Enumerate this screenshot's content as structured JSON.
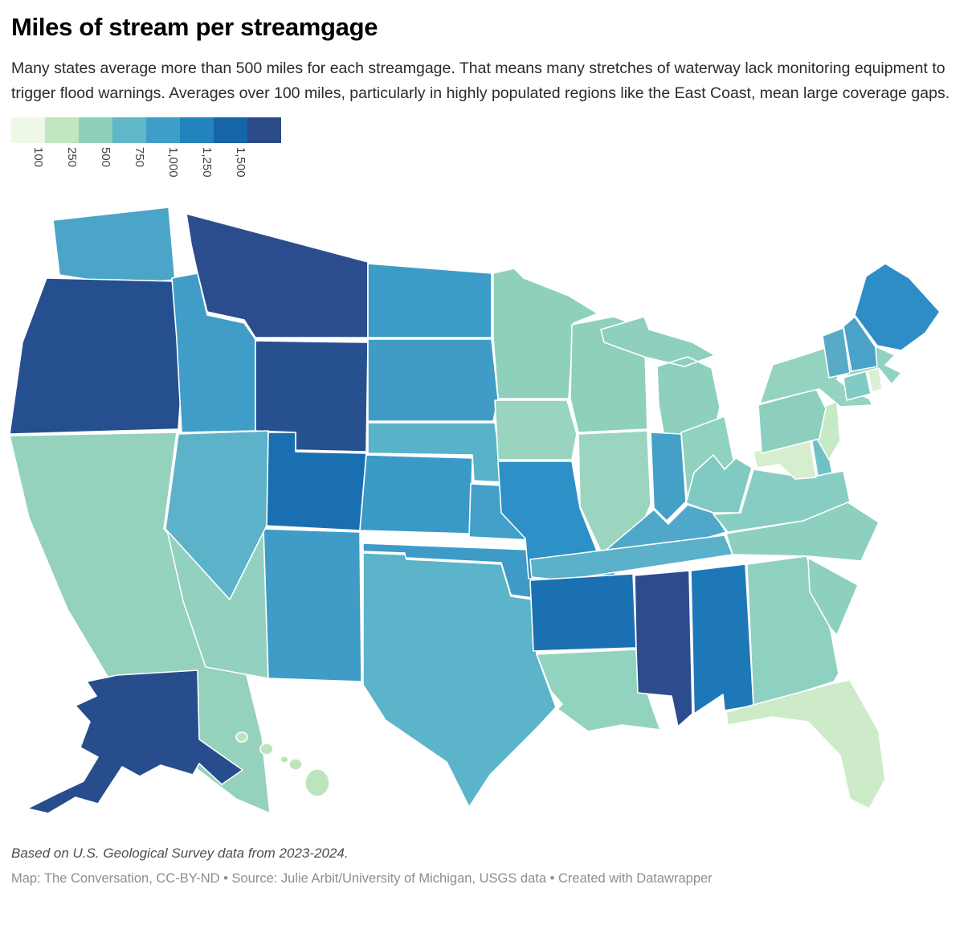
{
  "header": {
    "title": "Miles of stream per streamgage",
    "subtitle": "Many states average more than 500 miles for each streamgage. That means many stretches of waterway lack monitoring equipment to trigger flood warnings. Averages over 100 miles, particularly in highly populated regions like the East Coast, mean large coverage gaps."
  },
  "legend": {
    "colors": [
      "#edf8e7",
      "#c2e6bf",
      "#8fd0bb",
      "#60b7c8",
      "#3f9ec7",
      "#2384bd",
      "#1765a9",
      "#2c4a87"
    ],
    "ticks": [
      "100",
      "250",
      "500",
      "750",
      "1,000",
      "1,250",
      "1,500"
    ]
  },
  "map": {
    "states": [
      {
        "id": "WA",
        "name": "Washington",
        "fill": "#4aa5c9"
      },
      {
        "id": "OR",
        "name": "Oregon",
        "fill": "#264f90"
      },
      {
        "id": "CA",
        "name": "California",
        "fill": "#95d2be"
      },
      {
        "id": "NV",
        "name": "Nevada",
        "fill": "#5cb3c9"
      },
      {
        "id": "ID",
        "name": "Idaho",
        "fill": "#3f9dc8"
      },
      {
        "id": "MT",
        "name": "Montana",
        "fill": "#2b4d8d"
      },
      {
        "id": "WY",
        "name": "Wyoming",
        "fill": "#27508f"
      },
      {
        "id": "UT",
        "name": "Utah",
        "fill": "#1a6fb1"
      },
      {
        "id": "CO",
        "name": "Colorado",
        "fill": "#3b99c8"
      },
      {
        "id": "AZ",
        "name": "Arizona",
        "fill": "#92d1c0"
      },
      {
        "id": "NM",
        "name": "New Mexico",
        "fill": "#3f9cc7"
      },
      {
        "id": "ND",
        "name": "North Dakota",
        "fill": "#3d9bc7"
      },
      {
        "id": "SD",
        "name": "South Dakota",
        "fill": "#409cc7"
      },
      {
        "id": "NE",
        "name": "Nebraska",
        "fill": "#58b3c8"
      },
      {
        "id": "KS",
        "name": "Kansas",
        "fill": "#42a0c8"
      },
      {
        "id": "OK",
        "name": "Oklahoma",
        "fill": "#3e9bc8"
      },
      {
        "id": "TX",
        "name": "Texas",
        "fill": "#5bb4c9"
      },
      {
        "id": "MN",
        "name": "Minnesota",
        "fill": "#8ed0bb"
      },
      {
        "id": "IA",
        "name": "Iowa",
        "fill": "#98d4bf"
      },
      {
        "id": "MO",
        "name": "Missouri",
        "fill": "#2d90c6"
      },
      {
        "id": "WI",
        "name": "Wisconsin",
        "fill": "#8ed0bb"
      },
      {
        "id": "IL",
        "name": "Illinois",
        "fill": "#9bd5c0"
      },
      {
        "id": "IN",
        "name": "Indiana",
        "fill": "#45a0c8"
      },
      {
        "id": "MI",
        "name": "Michigan",
        "fill": "#8ed0bd"
      },
      {
        "id": "OH",
        "name": "Ohio",
        "fill": "#8fd2c0"
      },
      {
        "id": "KY",
        "name": "Kentucky",
        "fill": "#4fa8ca"
      },
      {
        "id": "TN",
        "name": "Tennessee",
        "fill": "#5ab1c9"
      },
      {
        "id": "AR",
        "name": "Arkansas",
        "fill": "#1b70b2"
      },
      {
        "id": "LA",
        "name": "Louisiana",
        "fill": "#92d3bf"
      },
      {
        "id": "MS",
        "name": "Mississippi",
        "fill": "#2c4c8e"
      },
      {
        "id": "AL",
        "name": "Alabama",
        "fill": "#1e78b7"
      },
      {
        "id": "GA",
        "name": "Georgia",
        "fill": "#8fd1c0"
      },
      {
        "id": "FL",
        "name": "Florida",
        "fill": "#cdebc9"
      },
      {
        "id": "SC",
        "name": "South Carolina",
        "fill": "#8dd0bf"
      },
      {
        "id": "NC",
        "name": "North Carolina",
        "fill": "#8dd0c0"
      },
      {
        "id": "VA",
        "name": "Virginia",
        "fill": "#88cdc2"
      },
      {
        "id": "WV",
        "name": "West Virginia",
        "fill": "#80cac3"
      },
      {
        "id": "MD",
        "name": "Maryland",
        "fill": "#d5eecd"
      },
      {
        "id": "DE",
        "name": "Delaware",
        "fill": "#70c1c5"
      },
      {
        "id": "NJ",
        "name": "New Jersey",
        "fill": "#c8e9c6"
      },
      {
        "id": "PA",
        "name": "Pennsylvania",
        "fill": "#8ccfbf"
      },
      {
        "id": "NY",
        "name": "New York",
        "fill": "#93d3c0"
      },
      {
        "id": "CT",
        "name": "Connecticut",
        "fill": "#81cbc5"
      },
      {
        "id": "RI",
        "name": "Rhode Island",
        "fill": "#d9f0d4"
      },
      {
        "id": "MA",
        "name": "Massachusetts",
        "fill": "#8ed2c2"
      },
      {
        "id": "VT",
        "name": "Vermont",
        "fill": "#57abc7"
      },
      {
        "id": "NH",
        "name": "New Hampshire",
        "fill": "#4aa2c9"
      },
      {
        "id": "ME",
        "name": "Maine",
        "fill": "#2e8dc6"
      },
      {
        "id": "AK",
        "name": "Alaska",
        "fill": "#274d8d"
      },
      {
        "id": "HI",
        "name": "Hawaii",
        "fill": "#bce4bd"
      }
    ]
  },
  "footer": {
    "note": "Based on U.S. Geological Survey data from 2023-2024.",
    "attribution": "Map: The Conversation, CC-BY-ND • Source: Julie Arbit/University of Michigan, USGS data • Created with Datawrapper"
  }
}
